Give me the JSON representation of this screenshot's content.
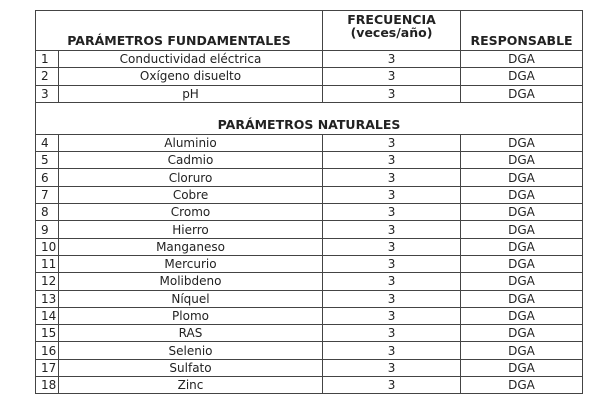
{
  "header": {
    "parameters": "PARÁMETROS FUNDAMENTALES",
    "frequency_line1": "FRECUENCIA",
    "frequency_line2": "(veces/año)",
    "responsible": "RESPONSABLE"
  },
  "sections": [
    {
      "title": null,
      "rows": [
        {
          "n": 1,
          "parameter": "Conductividad eléctrica",
          "frequency": 3,
          "responsible": "DGA"
        },
        {
          "n": 2,
          "parameter": "Oxígeno disuelto",
          "frequency": 3,
          "responsible": "DGA"
        },
        {
          "n": 3,
          "parameter": "pH",
          "frequency": 3,
          "responsible": "DGA"
        }
      ]
    },
    {
      "title": "PARÁMETROS NATURALES",
      "rows": [
        {
          "n": 4,
          "parameter": "Aluminio",
          "frequency": 3,
          "responsible": "DGA"
        },
        {
          "n": 5,
          "parameter": "Cadmio",
          "frequency": 3,
          "responsible": "DGA"
        },
        {
          "n": 6,
          "parameter": "Cloruro",
          "frequency": 3,
          "responsible": "DGA"
        },
        {
          "n": 7,
          "parameter": "Cobre",
          "frequency": 3,
          "responsible": "DGA"
        },
        {
          "n": 8,
          "parameter": "Cromo",
          "frequency": 3,
          "responsible": "DGA"
        },
        {
          "n": 9,
          "parameter": "Hierro",
          "frequency": 3,
          "responsible": "DGA"
        },
        {
          "n": 10,
          "parameter": "Manganeso",
          "frequency": 3,
          "responsible": "DGA"
        },
        {
          "n": 11,
          "parameter": "Mercurio",
          "frequency": 3,
          "responsible": "DGA"
        },
        {
          "n": 12,
          "parameter": "Molibdeno",
          "frequency": 3,
          "responsible": "DGA"
        },
        {
          "n": 13,
          "parameter": "Níquel",
          "frequency": 3,
          "responsible": "DGA"
        },
        {
          "n": 14,
          "parameter": "Plomo",
          "frequency": 3,
          "responsible": "DGA"
        },
        {
          "n": 15,
          "parameter": "RAS",
          "frequency": 3,
          "responsible": "DGA"
        },
        {
          "n": 16,
          "parameter": "Selenio",
          "frequency": 3,
          "responsible": "DGA"
        },
        {
          "n": 17,
          "parameter": "Sulfato",
          "frequency": 3,
          "responsible": "DGA"
        },
        {
          "n": 18,
          "parameter": "Zinc",
          "frequency": 3,
          "responsible": "DGA"
        }
      ]
    }
  ]
}
